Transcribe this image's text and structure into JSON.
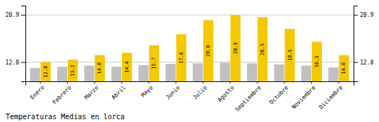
{
  "chart_data": {
    "type": "bar",
    "title": "Temperaturas Medias en lorca",
    "categories": [
      "Enero",
      "Febrero",
      "Marzo",
      "Abril",
      "Mayo",
      "Junio",
      "Julio",
      "Agosto",
      "Septiembre",
      "Octubre",
      "Noviembre",
      "Diciembre"
    ],
    "series": [
      {
        "color": "#C0C0C0",
        "values": [
          11.8,
          12.0,
          12.2,
          12.0,
          12.3,
          12.5,
          12.6,
          12.7,
          12.6,
          12.4,
          12.2,
          11.9
        ]
      },
      {
        "color": "#F5C800",
        "values": [
          12.8,
          13.2,
          14.0,
          14.4,
          15.7,
          17.6,
          20.0,
          20.9,
          20.5,
          18.5,
          16.3,
          14.0
        ],
        "value_labels": [
          "12.8",
          "13.2",
          "14.0",
          "14.4",
          "15.7",
          "17.6",
          "20.0",
          "20.9",
          "20.5",
          "18.5",
          "16.3",
          "14.0"
        ]
      }
    ],
    "ylim": [
      9.5,
      22.5
    ],
    "yticks": [
      12.8,
      20.9
    ],
    "y2lim": [
      9.5,
      22.5
    ],
    "y2ticks": [
      12.8,
      20.9
    ],
    "grid": true,
    "data_labels": true
  }
}
